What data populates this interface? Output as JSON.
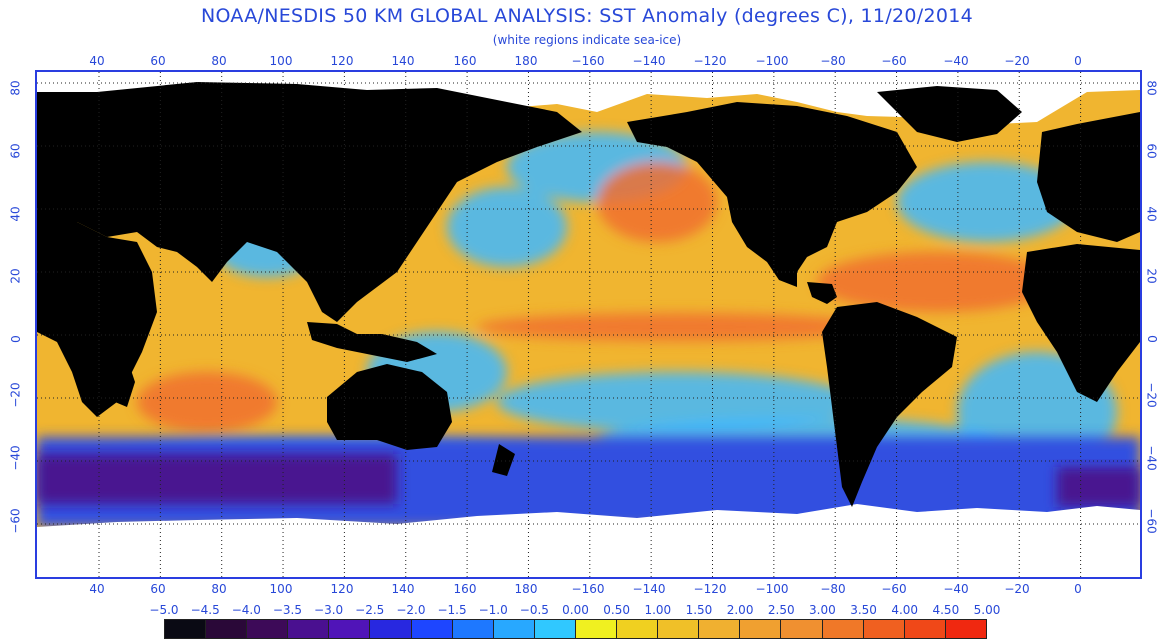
{
  "title": "NOAA/NESDIS 50 KM GLOBAL ANALYSIS: SST Anomaly (degrees C), 11/20/2014",
  "subtitle": "(white regions indicate sea-ice)",
  "longitude_ticks": [
    "40",
    "60",
    "80",
    "100",
    "120",
    "140",
    "160",
    "180",
    "−160",
    "−140",
    "−120",
    "−100",
    "−80",
    "−60",
    "−40",
    "−20",
    "0"
  ],
  "latitude_ticks": [
    "80",
    "60",
    "40",
    "20",
    "0",
    "−20",
    "−40",
    "−60"
  ],
  "colorbar": {
    "labels": [
      "−5.0",
      "−4.5",
      "−4.0",
      "−3.5",
      "−3.0",
      "−2.5",
      "−2.0",
      "−1.5",
      "−1.0",
      "−0.5",
      "0.00",
      "0.50",
      "1.00",
      "1.50",
      "2.00",
      "2.50",
      "3.00",
      "3.50",
      "4.00",
      "4.50",
      "5.00"
    ],
    "colors": [
      "#0a0a14",
      "#2a0838",
      "#3d0a58",
      "#4a1090",
      "#5014b8",
      "#2828e0",
      "#1e46ff",
      "#1e78ff",
      "#28a8ff",
      "#30c8ff",
      "#f0f020",
      "#f0d020",
      "#f0c028",
      "#f0b030",
      "#f0a030",
      "#f09030",
      "#f07828",
      "#f06020",
      "#f04818",
      "#f02810"
    ]
  },
  "palette": {
    "land": "#000000",
    "ice": "#ffffff",
    "grid": "#222222",
    "frame": "#2a3ee0",
    "anomaly_warm": "#f0b530",
    "anomaly_hot": "#f07030",
    "anomaly_neutral": "#f0e020",
    "anomaly_cool": "#40b8ff",
    "anomaly_cold": "#3050e0",
    "anomaly_very_cold": "#4a1890"
  }
}
